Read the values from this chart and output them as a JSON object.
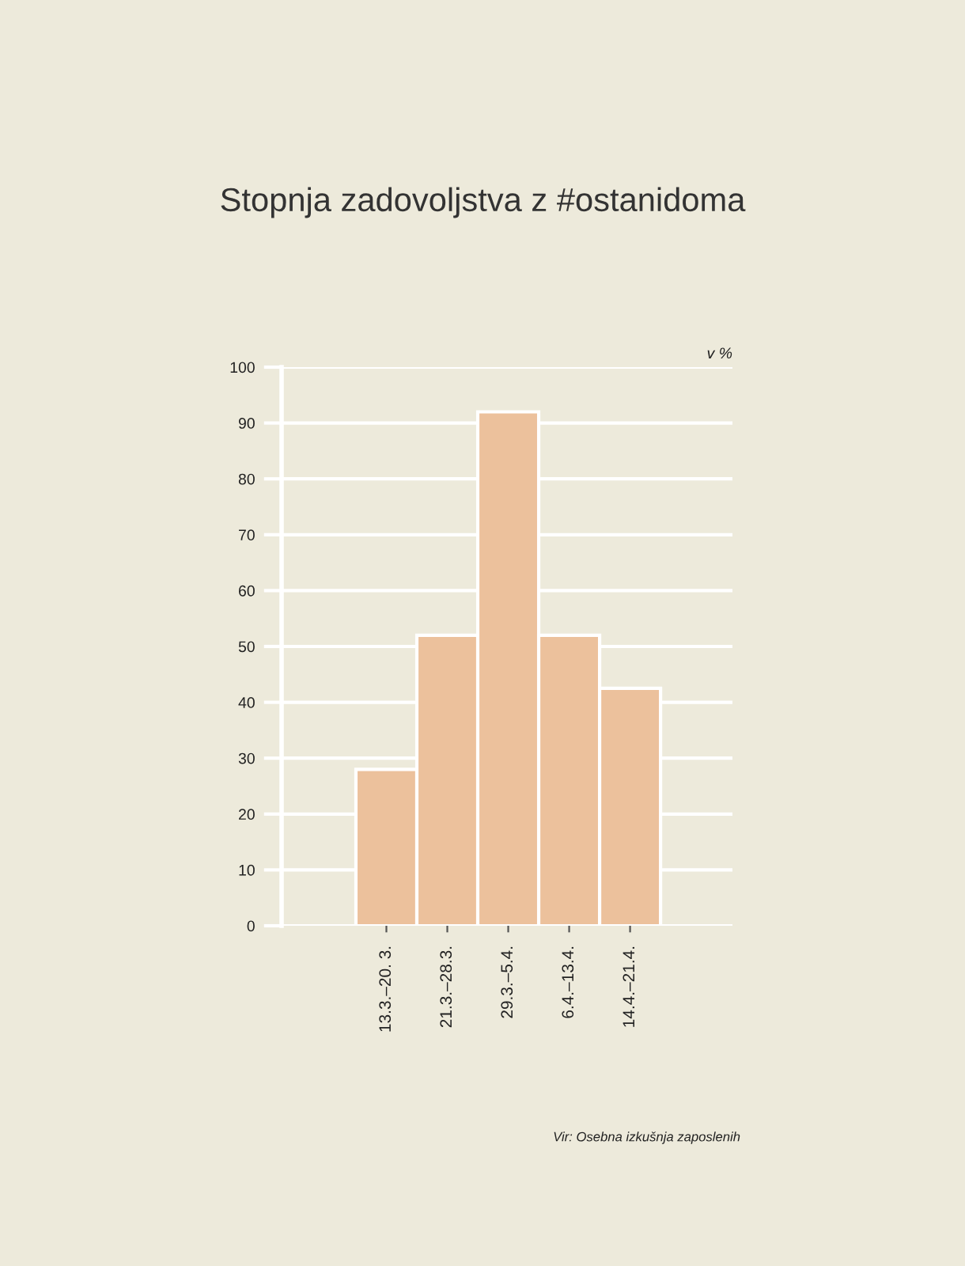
{
  "chart_data": {
    "type": "bar",
    "title": "Stopnja zadovoljstva z #ostanidoma",
    "ylabel": "v %",
    "categories": [
      "13.3.–20. 3.",
      "21.3.–28.3.",
      "29.3.–5.4.",
      "6.4.–13.4.",
      "14.4.–21.4."
    ],
    "values": [
      28,
      52,
      92,
      52,
      42.5
    ],
    "color": "#ecc19c",
    "ylim": [
      0,
      100
    ],
    "yticks": [
      0,
      10,
      20,
      30,
      40,
      50,
      60,
      70,
      80,
      90,
      100
    ],
    "grid": "y",
    "annotations": [
      "Vir: Osebna izkušnja zaposlenih"
    ]
  }
}
